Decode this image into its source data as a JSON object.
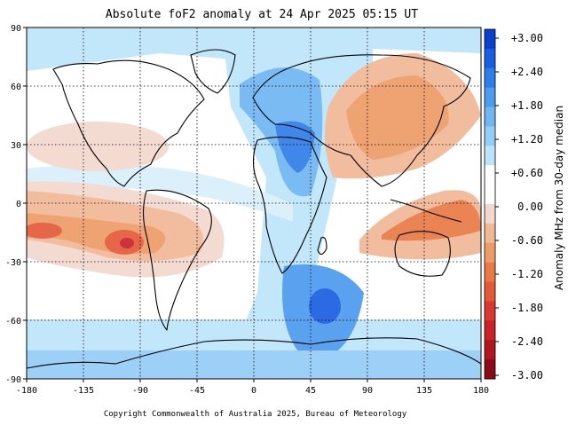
{
  "title": "Absolute foF2 anomaly at 24 Apr 2025 05:15 UT",
  "copyright": "Copyright Commonwealth of Australia 2025, Bureau of Meteorology",
  "map": {
    "projection": "equirectangular",
    "xlim": [
      -180,
      180
    ],
    "ylim": [
      -90,
      90
    ],
    "x_ticks": [
      "-180",
      "-135",
      "-90",
      "-45",
      "0",
      "45",
      "90",
      "135",
      "180"
    ],
    "y_ticks": [
      "90",
      "60",
      "30",
      "0",
      "-30",
      "-60",
      "-90"
    ],
    "grid": true
  },
  "colorbar": {
    "title": "Anomaly MHz from 30-day median",
    "labels": [
      "+3.00",
      "+2.40",
      "+1.80",
      "+1.20",
      "+0.60",
      "0.00",
      "-0.60",
      "-1.20",
      "-1.80",
      "-2.40",
      "-3.00"
    ],
    "colors": [
      "#0a3fd0",
      "#1a5ee0",
      "#2f7ee8",
      "#4d9bee",
      "#6fb6f2",
      "#94cdf6",
      "#bde4fa",
      "#ffffff",
      "#ffffff",
      "#f3d8cf",
      "#f1b896",
      "#ee9c67",
      "#e97a47",
      "#e35a3a",
      "#d83a30",
      "#c8222a",
      "#b01522",
      "#8a0a18"
    ]
  },
  "chart_data": {
    "type": "heatmap",
    "title": "Absolute foF2 anomaly at 24 Apr 2025 05:15 UT",
    "colorbar_label": "Anomaly MHz from 30-day median",
    "colorbar_range": [
      -3.0,
      3.0
    ],
    "xlim": [
      -180,
      180
    ],
    "ylim": [
      -90,
      90
    ],
    "anomaly_regions": [
      {
        "lon": -100,
        "lat": -18,
        "value": -1.6
      },
      {
        "lon": -170,
        "lat": -12,
        "value": -1.0
      },
      {
        "lon": 170,
        "lat": -12,
        "value": -1.0
      },
      {
        "lon": 120,
        "lat": 50,
        "value": -0.6
      },
      {
        "lon": 130,
        "lat": -25,
        "value": -0.8
      },
      {
        "lon": 35,
        "lat": 35,
        "value": 1.4
      },
      {
        "lon": 40,
        "lat": 65,
        "value": 1.2
      },
      {
        "lon": 55,
        "lat": -55,
        "value": 1.6
      },
      {
        "lon": 0,
        "lat": -80,
        "value": 0.6
      },
      {
        "lon": -120,
        "lat": 65,
        "value": 0.6
      }
    ]
  }
}
